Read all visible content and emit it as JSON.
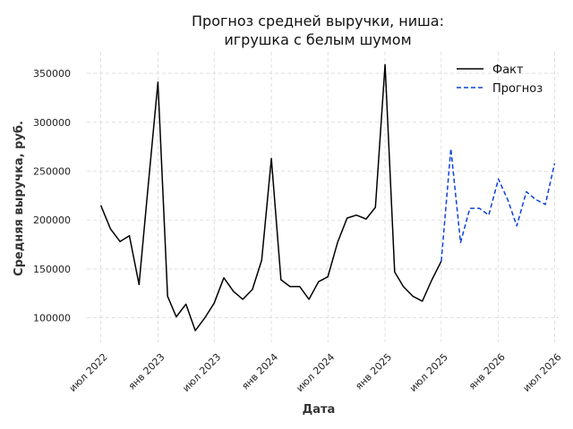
{
  "chart_data": {
    "type": "line",
    "title_line1": "Прогноз средней выручки, ниша:",
    "title_line2": "игрушка с белым шумом",
    "xlabel": "Дата",
    "ylabel": "Средняя выручка, руб.",
    "ylim": [
      75000,
      372000
    ],
    "yticks": [
      100000,
      150000,
      200000,
      250000,
      300000,
      350000
    ],
    "ytick_labels": [
      "100000",
      "150000",
      "200000",
      "250000",
      "300000",
      "350000"
    ],
    "xlim": [
      "2022-05-17",
      "2026-07-14"
    ],
    "xticks": [
      "2022-07-01",
      "2023-01-01",
      "2023-07-01",
      "2024-01-01",
      "2024-07-01",
      "2025-01-01",
      "2025-07-01",
      "2026-01-01",
      "2026-07-01"
    ],
    "xtick_labels": [
      "июл 2022",
      "янв 2023",
      "июл 2023",
      "янв 2024",
      "июл 2024",
      "янв 2025",
      "июл 2025",
      "янв 2026",
      "июл 2026"
    ],
    "grid": true,
    "legend_position": "top-right",
    "series": [
      {
        "name": "Факт",
        "color": "#000000",
        "style": "solid",
        "x": [
          "2022-07-01",
          "2022-08-01",
          "2022-09-01",
          "2022-10-01",
          "2022-11-01",
          "2022-12-01",
          "2023-01-01",
          "2023-02-01",
          "2023-03-01",
          "2023-04-01",
          "2023-05-01",
          "2023-06-01",
          "2023-07-01",
          "2023-08-01",
          "2023-09-01",
          "2023-10-01",
          "2023-11-01",
          "2023-12-01",
          "2024-01-01",
          "2024-02-01",
          "2024-03-01",
          "2024-04-01",
          "2024-05-01",
          "2024-06-01",
          "2024-07-01",
          "2024-08-01",
          "2024-09-01",
          "2024-10-01",
          "2024-11-01",
          "2024-12-01",
          "2025-01-01",
          "2025-02-01",
          "2025-03-01",
          "2025-04-01",
          "2025-05-01",
          "2025-06-01",
          "2025-07-01"
        ],
        "y": [
          215000,
          191000,
          178000,
          184000,
          134000,
          237000,
          341000,
          122000,
          101000,
          114000,
          87000,
          100000,
          115000,
          141000,
          127000,
          119000,
          129000,
          159000,
          263000,
          139000,
          132000,
          132000,
          119000,
          137000,
          142000,
          177000,
          202000,
          205000,
          201000,
          213000,
          359000,
          147000,
          132000,
          122000,
          117000,
          139000,
          158000
        ]
      },
      {
        "name": "Прогноз",
        "color": "#0c42d6",
        "style": "dashed",
        "x": [
          "2025-07-01",
          "2025-08-01",
          "2025-09-01",
          "2025-10-01",
          "2025-11-01",
          "2025-12-01",
          "2026-01-01",
          "2026-02-01",
          "2026-03-01",
          "2026-04-01",
          "2026-05-01",
          "2026-06-01",
          "2026-07-01"
        ],
        "y": [
          158000,
          273000,
          177000,
          212000,
          212000,
          205000,
          242000,
          220000,
          194000,
          229000,
          221000,
          216000,
          258000
        ]
      }
    ]
  }
}
